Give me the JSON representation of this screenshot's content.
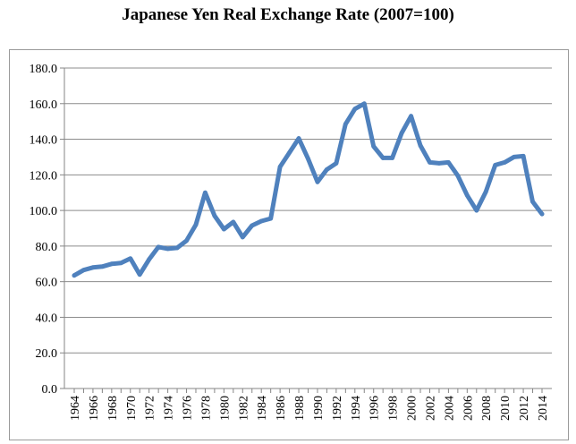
{
  "chart_data": {
    "type": "line",
    "title": "Japanese Yen Real Exchange Rate (2007=100)",
    "xlabel": "",
    "ylabel": "",
    "ylim": [
      0,
      180
    ],
    "yticks": [
      "0.0",
      "20.0",
      "40.0",
      "60.0",
      "80.0",
      "100.0",
      "120.0",
      "140.0",
      "160.0",
      "180.0"
    ],
    "x": [
      1964,
      1965,
      1966,
      1967,
      1968,
      1969,
      1970,
      1971,
      1972,
      1973,
      1974,
      1975,
      1976,
      1977,
      1978,
      1979,
      1980,
      1981,
      1982,
      1983,
      1984,
      1985,
      1986,
      1987,
      1988,
      1989,
      1990,
      1991,
      1992,
      1993,
      1994,
      1995,
      1996,
      1997,
      1998,
      1999,
      2000,
      2001,
      2002,
      2003,
      2004,
      2005,
      2006,
      2007,
      2008,
      2009,
      2010,
      2011,
      2012,
      2013,
      2014
    ],
    "xtick_labels": [
      "1964",
      "1966",
      "1968",
      "1970",
      "1972",
      "1974",
      "1976",
      "1978",
      "1980",
      "1982",
      "1984",
      "1986",
      "1988",
      "1990",
      "1992",
      "1994",
      "1996",
      "1998",
      "2000",
      "2002",
      "2004",
      "2006",
      "2008",
      "2010",
      "2012",
      "2014"
    ],
    "series": [
      {
        "values": [
          63.5,
          66.5,
          68.0,
          68.5,
          70.0,
          70.5,
          73.0,
          64.0,
          72.5,
          79.5,
          78.5,
          79.0,
          83.0,
          92.0,
          110.0,
          97.0,
          89.5,
          93.5,
          85.0,
          91.5,
          94.0,
          95.5,
          124.5,
          132.5,
          140.5,
          129.0,
          116.0,
          123.0,
          126.5,
          148.5,
          157.0,
          160.0,
          136.0,
          129.5,
          129.5,
          143.5,
          153.0,
          136.5,
          127.0,
          126.5,
          127.0,
          119.5,
          108.5,
          100.0,
          110.5,
          125.5,
          127.0,
          130.0,
          130.5,
          105.0,
          98.0
        ]
      }
    ],
    "grid": true,
    "legend": "none",
    "colors": {
      "line": "#4f81bd",
      "grid": "#8c8c8c",
      "axis": "#868686"
    }
  }
}
